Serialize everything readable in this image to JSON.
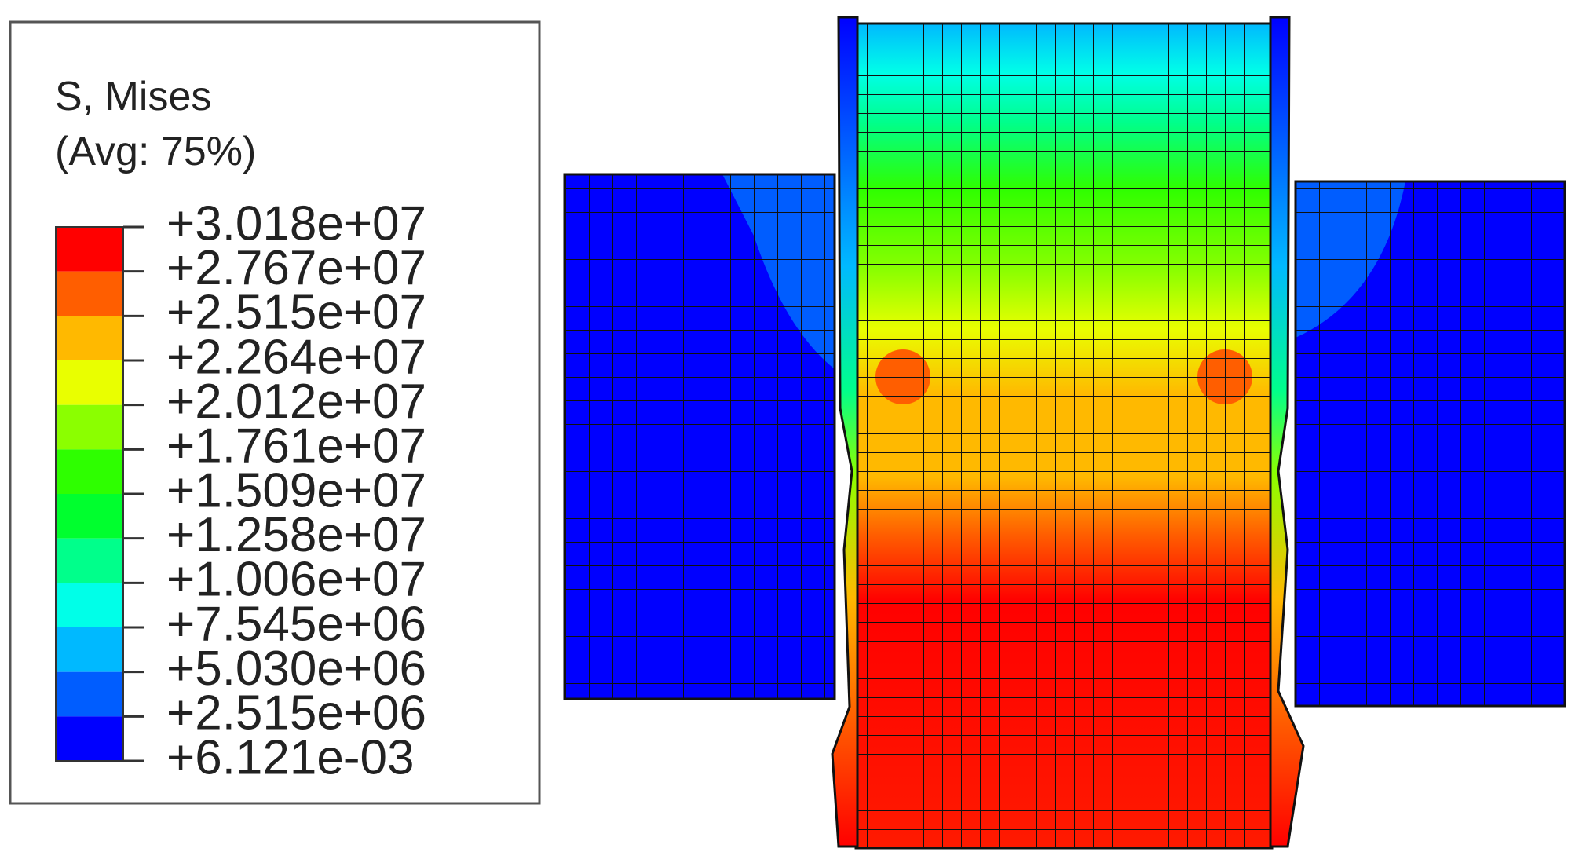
{
  "legend": {
    "title": "S, Mises",
    "subtitle": "(Avg: 75%)",
    "levels": [
      "+3.018e+07",
      "+2.767e+07",
      "+2.515e+07",
      "+2.264e+07",
      "+2.012e+07",
      "+1.761e+07",
      "+1.509e+07",
      "+1.258e+07",
      "+1.006e+07",
      "+7.545e+06",
      "+5.030e+06",
      "+2.515e+06",
      "+6.121e-03"
    ],
    "colors": [
      "#ff0000",
      "#ff5e00",
      "#ffb900",
      "#e9ff00",
      "#8bff00",
      "#2eff00",
      "#00ff2e",
      "#00ff8b",
      "#00ffe8",
      "#00b9ff",
      "#005dff",
      "#0000ff"
    ]
  }
}
